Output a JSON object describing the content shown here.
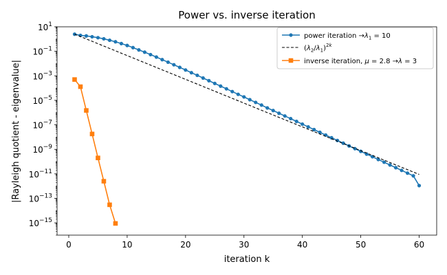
{
  "chart_data": {
    "type": "line",
    "title": "Power vs. inverse iteration",
    "xlabel": "iteration k",
    "ylabel": "|Rayleigh quotient - eigenvalue|",
    "xlim": [
      -2,
      63
    ],
    "ylim": [
      1e-16,
      10.0
    ],
    "yscale": "log",
    "grid": false,
    "legend_position": "top-right",
    "x_ticks": [
      0,
      10,
      20,
      30,
      40,
      50,
      60
    ],
    "x_tick_labels": [
      "0",
      "10",
      "20",
      "30",
      "40",
      "50",
      "60"
    ],
    "y_tick_exponents": [
      1,
      -1,
      -3,
      -5,
      -7,
      -9,
      -11,
      -13,
      -15
    ],
    "y_tick_labels": [
      "10^1",
      "10^-1",
      "10^-3",
      "10^-5",
      "10^-7",
      "10^-9",
      "10^-11",
      "10^-13",
      "10^-15"
    ],
    "series": [
      {
        "name": "power iteration",
        "legend_arrow": "λ1 = 10",
        "color": "#1f77b4",
        "marker": "circle",
        "line_style": "solid",
        "x": [
          1,
          2,
          3,
          4,
          5,
          6,
          7,
          8,
          9,
          10,
          11,
          12,
          13,
          14,
          15,
          16,
          17,
          18,
          19,
          20,
          21,
          22,
          23,
          24,
          25,
          26,
          27,
          28,
          29,
          30,
          31,
          32,
          33,
          34,
          35,
          36,
          37,
          38,
          39,
          40,
          41,
          42,
          43,
          44,
          45,
          46,
          47,
          48,
          49,
          50,
          51,
          52,
          53,
          54,
          55,
          56,
          57,
          58,
          59,
          60
        ],
        "y": [
          2.5,
          2.0,
          1.8,
          1.55,
          1.3,
          1.05,
          0.8,
          0.6,
          0.43,
          0.3,
          0.2,
          0.13,
          0.085,
          0.054,
          0.034,
          0.021,
          0.013,
          0.008,
          0.0049,
          0.003,
          0.0018,
          0.0011,
          0.00066,
          0.0004,
          0.00024,
          0.000145,
          8.7e-05,
          5.2e-05,
          3.1e-05,
          1.9e-05,
          1.13e-05,
          6.8e-06,
          4.1e-06,
          2.4e-06,
          1.47e-06,
          8.8e-07,
          5.3e-07,
          3.2e-07,
          1.9e-07,
          1.14e-07,
          6.8e-08,
          4.1e-08,
          2.45e-08,
          1.47e-08,
          8.8e-09,
          5.3e-09,
          3.2e-09,
          1.9e-09,
          1.14e-09,
          6.9e-10,
          4.1e-10,
          2.5e-10,
          1.48e-10,
          8.9e-11,
          5.3e-11,
          3.2e-11,
          1.92e-11,
          1.15e-11,
          6.9e-12,
          1.1e-12
        ]
      },
      {
        "name": "(λ2/λ1)^2k",
        "color": "#000000",
        "marker": "none",
        "line_style": "dashed",
        "x": [
          1,
          60
        ],
        "y": [
          2.5,
          9e-12
        ]
      },
      {
        "name": "inverse iteration, μ = 2.8",
        "legend_arrow": "λ = 3",
        "color": "#ff7f0e",
        "marker": "square",
        "line_style": "solid",
        "x": [
          1,
          2,
          3,
          4,
          5,
          6,
          7,
          8
        ],
        "y": [
          0.0005,
          0.00013,
          1.5e-06,
          1.8e-08,
          2e-10,
          2.5e-12,
          3e-14,
          9e-16
        ]
      }
    ]
  }
}
